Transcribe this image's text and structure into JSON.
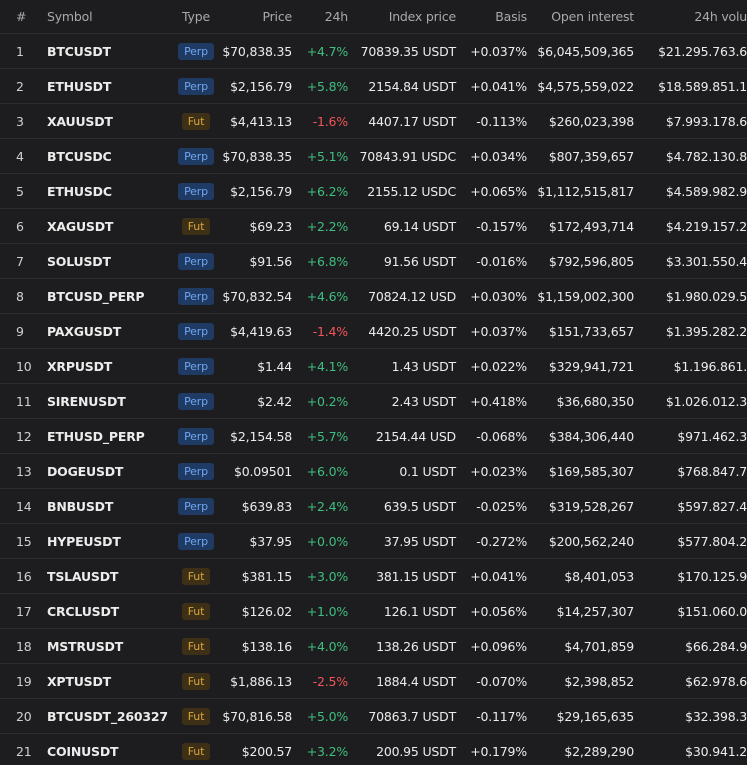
{
  "table": {
    "columns": [
      "#",
      "Symbol",
      "Type",
      "Price",
      "24h",
      "Index price",
      "Basis",
      "Open interest",
      "24h volu"
    ],
    "rows": [
      [
        "1",
        "BTCUSDT",
        "Perp",
        "$70,838.35",
        "+4.7%",
        "70839.35 USDT",
        "+0.037%",
        "$6,045,509,365",
        "$21.295.763.6"
      ],
      [
        "2",
        "ETHUSDT",
        "Perp",
        "$2,156.79",
        "+5.8%",
        "2154.84 USDT",
        "+0.041%",
        "$4,575,559,022",
        "$18.589.851.1"
      ],
      [
        "3",
        "XAUUSDT",
        "Fut",
        "$4,413.13",
        "-1.6%",
        "4407.17 USDT",
        "-0.113%",
        "$260,023,398",
        "$7.993.178.6"
      ],
      [
        "4",
        "BTCUSDC",
        "Perp",
        "$70,838.35",
        "+5.1%",
        "70843.91 USDC",
        "+0.034%",
        "$807,359,657",
        "$4.782.130.8"
      ],
      [
        "5",
        "ETHUSDC",
        "Perp",
        "$2,156.79",
        "+6.2%",
        "2155.12 USDC",
        "+0.065%",
        "$1,112,515,817",
        "$4.589.982.9"
      ],
      [
        "6",
        "XAGUSDT",
        "Fut",
        "$69.23",
        "+2.2%",
        "69.14 USDT",
        "-0.157%",
        "$172,493,714",
        "$4.219.157.2"
      ],
      [
        "7",
        "SOLUSDT",
        "Perp",
        "$91.56",
        "+6.8%",
        "91.56 USDT",
        "-0.016%",
        "$792,596,805",
        "$3.301.550.4"
      ],
      [
        "8",
        "BTCUSD_PERP",
        "Perp",
        "$70,832.54",
        "+4.6%",
        "70824.12 USD",
        "+0.030%",
        "$1,159,002,300",
        "$1.980.029.5"
      ],
      [
        "9",
        "PAXGUSDT",
        "Perp",
        "$4,419.63",
        "-1.4%",
        "4420.25 USDT",
        "+0.037%",
        "$151,733,657",
        "$1.395.282.2"
      ],
      [
        "10",
        "XRPUSDT",
        "Perp",
        "$1.44",
        "+4.1%",
        "1.43 USDT",
        "+0.022%",
        "$329,941,721",
        "$1.196.861."
      ],
      [
        "11",
        "SIRENUSDT",
        "Perp",
        "$2.42",
        "+0.2%",
        "2.43 USDT",
        "+0.418%",
        "$36,680,350",
        "$1.026.012.3"
      ],
      [
        "12",
        "ETHUSD_PERP",
        "Perp",
        "$2,154.58",
        "+5.7%",
        "2154.44 USD",
        "-0.068%",
        "$384,306,440",
        "$971.462.3"
      ],
      [
        "13",
        "DOGEUSDT",
        "Perp",
        "$0.09501",
        "+6.0%",
        "0.1 USDT",
        "+0.023%",
        "$169,585,307",
        "$768.847.7"
      ],
      [
        "14",
        "BNBUSDT",
        "Perp",
        "$639.83",
        "+2.4%",
        "639.5 USDT",
        "-0.025%",
        "$319,528,267",
        "$597.827.4"
      ],
      [
        "15",
        "HYPEUSDT",
        "Perp",
        "$37.95",
        "+0.0%",
        "37.95 USDT",
        "-0.272%",
        "$200,562,240",
        "$577.804.2"
      ],
      [
        "16",
        "TSLAUSDT",
        "Fut",
        "$381.15",
        "+3.0%",
        "381.15 USDT",
        "+0.041%",
        "$8,401,053",
        "$170.125.9"
      ],
      [
        "17",
        "CRCLUSDT",
        "Fut",
        "$126.02",
        "+1.0%",
        "126.1 USDT",
        "+0.056%",
        "$14,257,307",
        "$151.060.0"
      ],
      [
        "18",
        "MSTRUSDT",
        "Fut",
        "$138.16",
        "+4.0%",
        "138.26 USDT",
        "+0.096%",
        "$4,701,859",
        "$66.284.9"
      ],
      [
        "19",
        "XPTUSDT",
        "Fut",
        "$1,886.13",
        "-2.5%",
        "1884.4 USDT",
        "-0.070%",
        "$2,398,852",
        "$62.978.6"
      ],
      [
        "20",
        "BTCUSDT_260327",
        "Fut",
        "$70,816.58",
        "+5.0%",
        "70863.7 USDT",
        "-0.117%",
        "$29,165,635",
        "$32.398.3"
      ],
      [
        "21",
        "COINUSDT",
        "Fut",
        "$200.57",
        "+3.2%",
        "200.95 USDT",
        "+0.179%",
        "$2,289,290",
        "$30.941.2"
      ]
    ]
  }
}
